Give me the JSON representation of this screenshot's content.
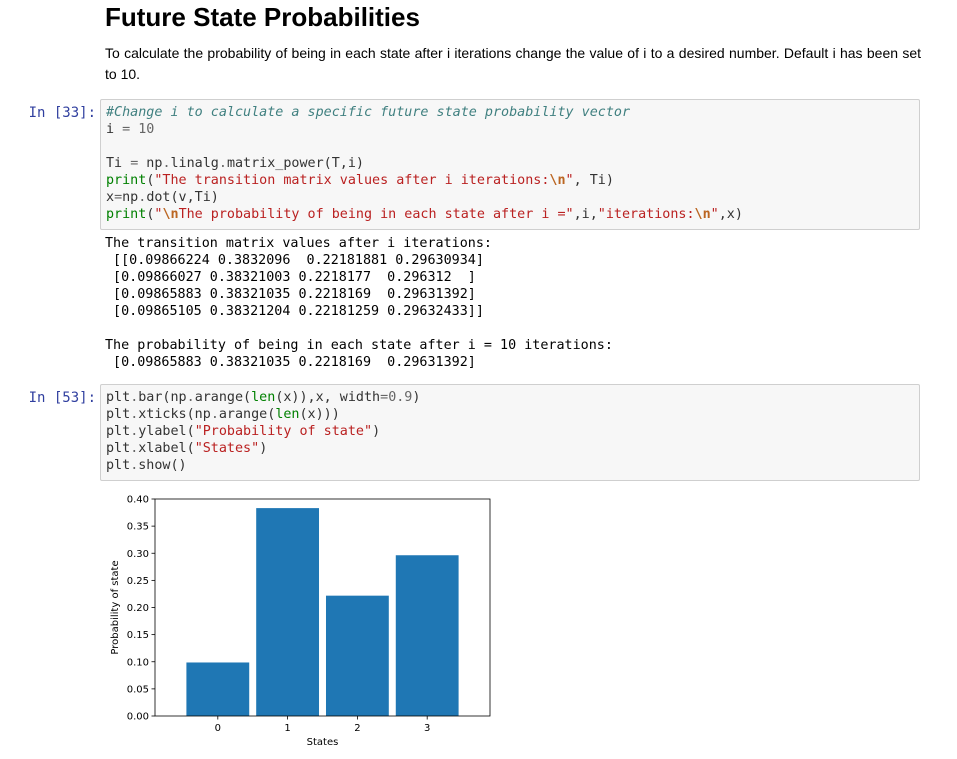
{
  "markdown": {
    "heading": "Future State Probabilities",
    "paragraph": "To calculate the probability of being in each state after i iterations change the value of i to a desired number. Default i has been set to 10."
  },
  "cells": [
    {
      "prompt": "In [33]:",
      "code": [
        [
          [
            "c-comment",
            "#Change i to calculate a specific future state probability vector"
          ]
        ],
        [
          [
            "",
            "i "
          ],
          [
            "c-op",
            "="
          ],
          [
            "",
            " "
          ],
          [
            "c-num",
            "10"
          ]
        ],
        [
          [
            "",
            ""
          ]
        ],
        [
          [
            "",
            "Ti "
          ],
          [
            "c-op",
            "="
          ],
          [
            "",
            " np"
          ],
          [
            "c-op",
            "."
          ],
          [
            "",
            "linalg"
          ],
          [
            "c-op",
            "."
          ],
          [
            "",
            "matrix_power(T,i)"
          ]
        ],
        [
          [
            "c-builtin",
            "print"
          ],
          [
            "",
            "("
          ],
          [
            "c-str",
            "\"The transition matrix values after i iterations:"
          ],
          [
            "c-esc",
            "\\n"
          ],
          [
            "c-str",
            "\""
          ],
          [
            "",
            ", Ti)"
          ]
        ],
        [
          [
            "",
            "x"
          ],
          [
            "c-op",
            "="
          ],
          [
            "",
            "np"
          ],
          [
            "c-op",
            "."
          ],
          [
            "",
            "dot(v,Ti)"
          ]
        ],
        [
          [
            "c-builtin",
            "print"
          ],
          [
            "",
            "("
          ],
          [
            "c-str",
            "\""
          ],
          [
            "c-esc",
            "\\n"
          ],
          [
            "c-str",
            "The probability of being in each state after i =\""
          ],
          [
            "",
            ",i,"
          ],
          [
            "c-str",
            "\"iterations:"
          ],
          [
            "c-esc",
            "\\n"
          ],
          [
            "c-str",
            "\""
          ],
          [
            "",
            ",x)"
          ]
        ]
      ],
      "output": [
        "The transition matrix values after i iterations:",
        " [[0.09866224 0.3832096  0.22181881 0.29630934]",
        " [0.09866027 0.38321003 0.2218177  0.296312  ]",
        " [0.09865883 0.38321035 0.2218169  0.29631392]",
        " [0.09865105 0.38321204 0.22181259 0.29632433]]",
        "",
        "The probability of being in each state after i = 10 iterations:",
        " [0.09865883 0.38321035 0.2218169  0.29631392]"
      ]
    },
    {
      "prompt": "In [53]:",
      "code": [
        [
          [
            "",
            "plt"
          ],
          [
            "c-op",
            "."
          ],
          [
            "",
            "bar(np"
          ],
          [
            "c-op",
            "."
          ],
          [
            "",
            "arange("
          ],
          [
            "c-builtin",
            "len"
          ],
          [
            "",
            "(x)),x, width"
          ],
          [
            "c-op",
            "="
          ],
          [
            "c-num",
            "0.9"
          ],
          [
            "",
            ")"
          ]
        ],
        [
          [
            "",
            "plt"
          ],
          [
            "c-op",
            "."
          ],
          [
            "",
            "xticks(np"
          ],
          [
            "c-op",
            "."
          ],
          [
            "",
            "arange("
          ],
          [
            "c-builtin",
            "len"
          ],
          [
            "",
            "(x)))"
          ]
        ],
        [
          [
            "",
            "plt"
          ],
          [
            "c-op",
            "."
          ],
          [
            "",
            "ylabel("
          ],
          [
            "c-str",
            "\"Probability of state\""
          ],
          [
            "",
            ")"
          ]
        ],
        [
          [
            "",
            "plt"
          ],
          [
            "c-op",
            "."
          ],
          [
            "",
            "xlabel("
          ],
          [
            "c-str",
            "\"States\""
          ],
          [
            "",
            ")"
          ]
        ],
        [
          [
            "",
            "plt"
          ],
          [
            "c-op",
            "."
          ],
          [
            "",
            "show()"
          ]
        ]
      ]
    }
  ],
  "chart_data": {
    "type": "bar",
    "categories": [
      "0",
      "1",
      "2",
      "3"
    ],
    "values": [
      0.09865883,
      0.38321035,
      0.2218169,
      0.29631392
    ],
    "bar_color": "#1f77b4",
    "xlabel": "States",
    "ylabel": "Probability of state",
    "ylim": [
      0,
      0.4
    ],
    "yticks": [
      "0.00",
      "0.05",
      "0.10",
      "0.15",
      "0.20",
      "0.25",
      "0.30",
      "0.35",
      "0.40"
    ],
    "grid": false
  }
}
